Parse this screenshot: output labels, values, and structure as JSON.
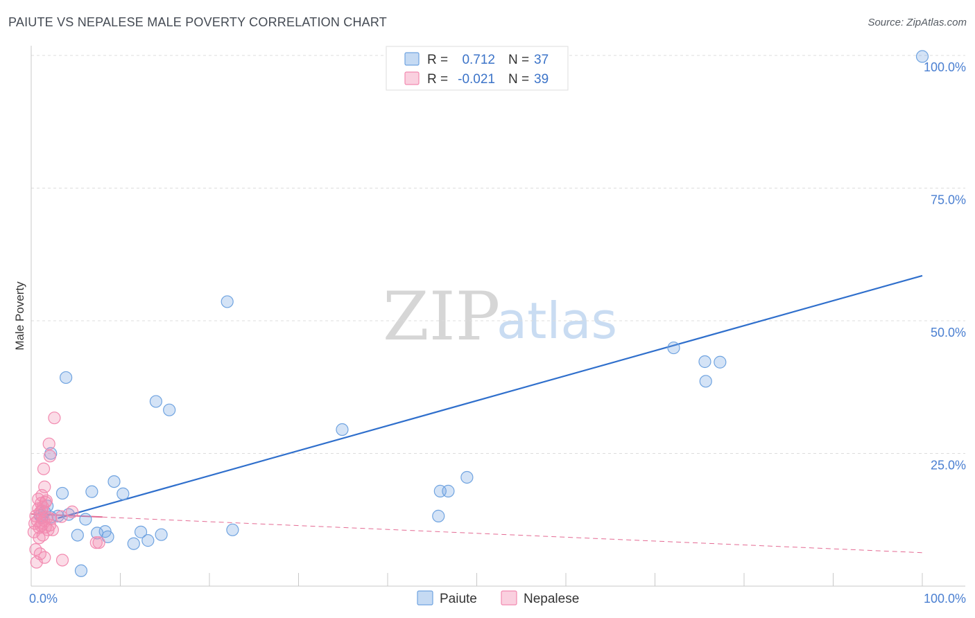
{
  "title": "PAIUTE VS NEPALESE MALE POVERTY CORRELATION CHART",
  "source": "Source: ZipAtlas.com",
  "chart_data": {
    "type": "scatter",
    "title": "PAIUTE VS NEPALESE MALE POVERTY CORRELATION CHART",
    "xlabel": "",
    "ylabel": "Male Poverty",
    "xlim": [
      0,
      100
    ],
    "ylim": [
      0,
      100
    ],
    "x_tick_labels": [
      "0.0%",
      "100.0%"
    ],
    "y_ticks": [
      25,
      50,
      75,
      100
    ],
    "y_tick_labels": [
      "25.0%",
      "50.0%",
      "75.0%",
      "100.0%"
    ],
    "grid": true,
    "watermark": [
      "ZIP",
      "atlas"
    ],
    "legend": {
      "placement": "top-center",
      "entries": [
        {
          "name": "Paiute",
          "r_label": "R =",
          "r_value": "0.712",
          "n_label": "N =",
          "n_value": "37",
          "color": "#6fa3e0"
        },
        {
          "name": "Nepalese",
          "r_label": "R =",
          "r_value": "-0.021",
          "n_label": "N =",
          "n_value": "39",
          "color": "#f28ab0"
        }
      ]
    },
    "series": [
      {
        "name": "Paiute",
        "color": "#6fa3e0",
        "trend": {
          "x": [
            3,
            100
          ],
          "y": [
            12.8,
            58.5
          ],
          "style": "solid",
          "color": "#2f6fcc"
        },
        "points": [
          {
            "x": 1.2,
            "y": 12.9
          },
          {
            "x": 1.0,
            "y": 13.3
          },
          {
            "x": 1.5,
            "y": 14.0
          },
          {
            "x": 1.8,
            "y": 15.1
          },
          {
            "x": 2.2,
            "y": 13.0
          },
          {
            "x": 2.2,
            "y": 25.0
          },
          {
            "x": 3.0,
            "y": 13.2
          },
          {
            "x": 3.5,
            "y": 17.5
          },
          {
            "x": 3.9,
            "y": 39.3
          },
          {
            "x": 4.2,
            "y": 13.5
          },
          {
            "x": 5.2,
            "y": 9.6
          },
          {
            "x": 5.6,
            "y": 2.9
          },
          {
            "x": 6.1,
            "y": 12.6
          },
          {
            "x": 6.8,
            "y": 17.8
          },
          {
            "x": 7.4,
            "y": 10.0
          },
          {
            "x": 8.3,
            "y": 10.3
          },
          {
            "x": 8.6,
            "y": 9.3
          },
          {
            "x": 9.3,
            "y": 19.7
          },
          {
            "x": 10.3,
            "y": 17.4
          },
          {
            "x": 11.5,
            "y": 8.0
          },
          {
            "x": 12.3,
            "y": 10.2
          },
          {
            "x": 13.1,
            "y": 8.6
          },
          {
            "x": 14.0,
            "y": 34.8
          },
          {
            "x": 14.6,
            "y": 9.7
          },
          {
            "x": 15.5,
            "y": 33.2
          },
          {
            "x": 22.0,
            "y": 53.6
          },
          {
            "x": 22.6,
            "y": 10.6
          },
          {
            "x": 34.9,
            "y": 29.5
          },
          {
            "x": 45.7,
            "y": 13.2
          },
          {
            "x": 45.9,
            "y": 17.9
          },
          {
            "x": 46.8,
            "y": 17.9
          },
          {
            "x": 48.9,
            "y": 20.5
          },
          {
            "x": 72.1,
            "y": 44.9
          },
          {
            "x": 75.6,
            "y": 42.3
          },
          {
            "x": 75.7,
            "y": 38.6
          },
          {
            "x": 77.3,
            "y": 42.2
          },
          {
            "x": 100.0,
            "y": 99.8
          }
        ]
      },
      {
        "name": "Nepalese",
        "color": "#f28ab0",
        "trend": {
          "x": [
            0,
            100
          ],
          "y": [
            13.6,
            6.3
          ],
          "style": "solid-then-dashed",
          "solid_until_x": 8.0,
          "color": "#e46a93"
        },
        "points": [
          {
            "x": 0.3,
            "y": 10.2
          },
          {
            "x": 0.4,
            "y": 11.8
          },
          {
            "x": 0.5,
            "y": 13.2
          },
          {
            "x": 0.5,
            "y": 6.9
          },
          {
            "x": 0.6,
            "y": 4.5
          },
          {
            "x": 0.7,
            "y": 12.3
          },
          {
            "x": 0.8,
            "y": 14.6
          },
          {
            "x": 0.8,
            "y": 16.4
          },
          {
            "x": 0.9,
            "y": 9.1
          },
          {
            "x": 0.9,
            "y": 11.0
          },
          {
            "x": 1.0,
            "y": 6.1
          },
          {
            "x": 1.0,
            "y": 13.9
          },
          {
            "x": 1.1,
            "y": 15.6
          },
          {
            "x": 1.1,
            "y": 11.4
          },
          {
            "x": 1.2,
            "y": 12.0
          },
          {
            "x": 1.2,
            "y": 17.1
          },
          {
            "x": 1.3,
            "y": 9.6
          },
          {
            "x": 1.3,
            "y": 14.9
          },
          {
            "x": 1.4,
            "y": 12.4
          },
          {
            "x": 1.4,
            "y": 22.1
          },
          {
            "x": 1.5,
            "y": 18.7
          },
          {
            "x": 1.5,
            "y": 5.4
          },
          {
            "x": 1.6,
            "y": 15.8
          },
          {
            "x": 1.6,
            "y": 11.1
          },
          {
            "x": 1.7,
            "y": 16.1
          },
          {
            "x": 1.8,
            "y": 13.0
          },
          {
            "x": 1.9,
            "y": 10.6
          },
          {
            "x": 2.0,
            "y": 26.8
          },
          {
            "x": 2.1,
            "y": 24.5
          },
          {
            "x": 2.1,
            "y": 11.5
          },
          {
            "x": 2.2,
            "y": 12.7
          },
          {
            "x": 2.4,
            "y": 10.6
          },
          {
            "x": 2.6,
            "y": 31.7
          },
          {
            "x": 3.4,
            "y": 13.1
          },
          {
            "x": 3.5,
            "y": 4.9
          },
          {
            "x": 4.6,
            "y": 14.0
          },
          {
            "x": 7.3,
            "y": 8.2
          },
          {
            "x": 7.6,
            "y": 8.2
          },
          {
            "x": 1.2,
            "y": 14.2
          }
        ]
      }
    ]
  }
}
